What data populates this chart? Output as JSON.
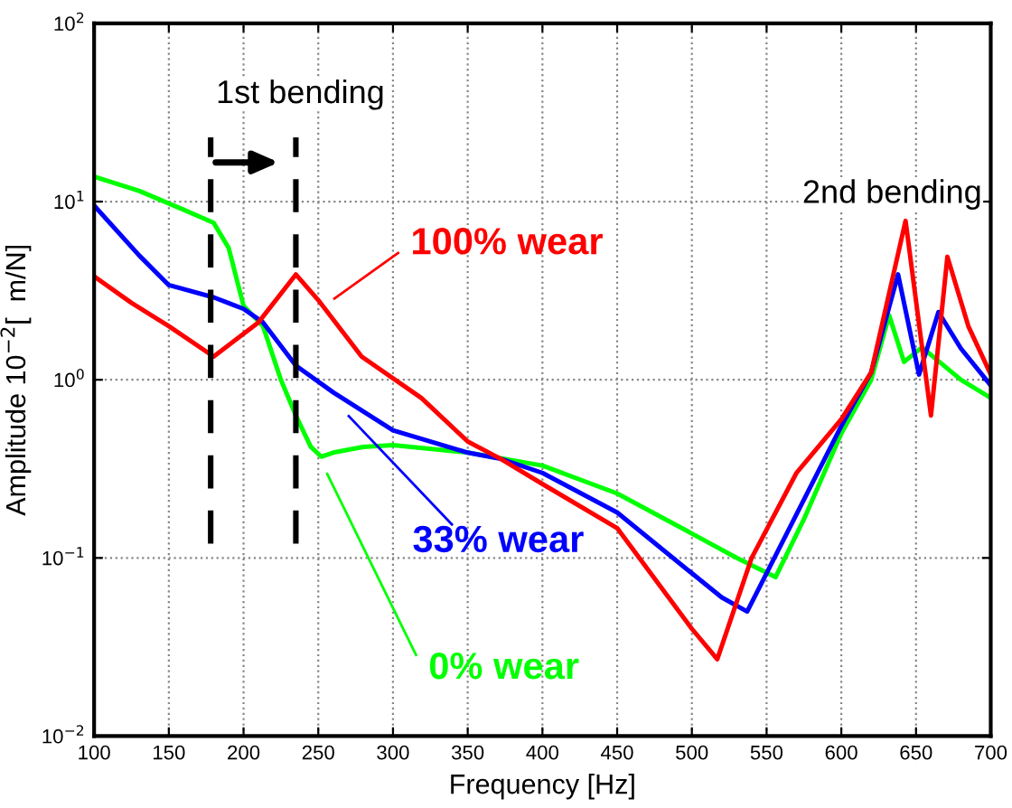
{
  "chart_data": {
    "type": "line",
    "xlabel": "Frequency [Hz]",
    "ylabel": "Amplitude 10$^{−2}$[  m/N]",
    "series": [
      {
        "color": "#00ff00",
        "x": [
          100,
          130,
          160,
          180,
          190,
          200,
          213,
          225,
          235,
          245,
          252,
          260,
          280,
          300,
          350,
          400,
          450,
          500,
          530,
          556,
          575,
          600,
          620,
          632,
          642,
          654,
          680,
          700
        ],
        "values": [
          13.8,
          11.5,
          9.0,
          7.6,
          5.5,
          2.6,
          2.0,
          1.0,
          0.63,
          0.42,
          0.37,
          0.39,
          0.42,
          0.43,
          0.39,
          0.33,
          0.23,
          0.137,
          0.1,
          0.078,
          0.165,
          0.5,
          1.0,
          2.3,
          1.26,
          1.52,
          1.0,
          0.79
        ]
      },
      {
        "color": "#0000ff",
        "x": [
          100,
          130,
          150,
          180,
          200,
          213,
          235,
          260,
          300,
          350,
          372,
          400,
          450,
          500,
          520,
          537,
          560,
          600,
          620,
          638,
          652,
          665,
          680,
          700
        ],
        "values": [
          9.5,
          5.0,
          3.4,
          2.9,
          2.5,
          2.1,
          1.2,
          0.85,
          0.52,
          0.39,
          0.36,
          0.3,
          0.18,
          0.082,
          0.06,
          0.05,
          0.12,
          0.55,
          1.1,
          3.9,
          1.07,
          2.4,
          1.5,
          0.93
        ]
      },
      {
        "color": "#ff0000",
        "x": [
          100,
          125,
          150,
          180,
          210,
          235,
          250,
          279,
          319,
          350,
          372,
          400,
          450,
          500,
          517,
          540,
          570,
          600,
          620,
          643,
          660,
          671,
          685,
          700
        ],
        "values": [
          3.8,
          2.7,
          2.0,
          1.35,
          2.1,
          3.9,
          2.8,
          1.35,
          0.79,
          0.45,
          0.36,
          0.26,
          0.147,
          0.04,
          0.027,
          0.1,
          0.3,
          0.6,
          1.1,
          7.8,
          0.63,
          4.9,
          2.0,
          1.07
        ]
      }
    ],
    "annotations": [
      "100% wear",
      "33% wear",
      "0% wear",
      "1st bending",
      "2nd bending"
    ],
    "ref_lines": [
      {
        "axis": "x",
        "value": 178,
        "line_style": "dashed",
        "color": "#000000"
      },
      {
        "axis": "x",
        "value": 235,
        "line_style": "dashed",
        "color": "#000000"
      }
    ],
    "log": "y",
    "xlim": [
      100,
      700
    ],
    "xticks": [
      100,
      150,
      200,
      250,
      300,
      350,
      400,
      450,
      500,
      550,
      600,
      650,
      700
    ],
    "ylim": [
      0.01,
      100
    ],
    "yticks": [
      {
        "value": 0.01,
        "label": "10$^{−2}$"
      },
      {
        "value": 0.1,
        "label": "10$^{−1}$"
      },
      {
        "value": 1,
        "label": "10$^{0}$"
      },
      {
        "value": 10,
        "label": "10$^{1}$"
      },
      {
        "value": 100,
        "label": "10$^{2}$"
      }
    ],
    "grid": true,
    "line_style": "solid",
    "marker": "none"
  }
}
